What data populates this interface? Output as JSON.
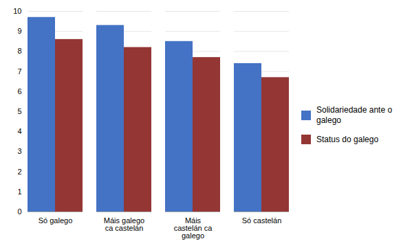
{
  "chart_data": {
    "type": "bar",
    "categories": [
      "Só galego",
      "Máis galego\nca castelán",
      "Máis\ncastelán ca\ngalego",
      "Só castelán"
    ],
    "series": [
      {
        "name": "Solidariedade ante o\ngalego",
        "color": "#4472C4",
        "values": [
          9.7,
          9.3,
          8.5,
          7.4
        ]
      },
      {
        "name": "Status do galego",
        "color": "#943634",
        "values": [
          8.6,
          8.2,
          7.7,
          6.7
        ]
      }
    ],
    "ylim": [
      0,
      10
    ],
    "yticks": [
      0,
      1,
      2,
      3,
      4,
      5,
      6,
      7,
      8,
      9,
      10
    ],
    "grid": true,
    "legend": "right"
  }
}
